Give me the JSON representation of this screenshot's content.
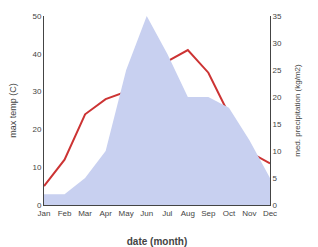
{
  "chart_data": {
    "type": "line",
    "categories": [
      "Jan",
      "Feb",
      "Mar",
      "Apr",
      "May",
      "Jun",
      "Jul",
      "Aug",
      "Sep",
      "Oct",
      "Nov",
      "Dec"
    ],
    "xlabel": "date (month)",
    "ylabel": "max temp (C)",
    "y2label": "med. precipitation (kg/m2)",
    "series": [
      {
        "type": "area",
        "axis": "y2",
        "color": "#c8d0f0",
        "values": [
          2,
          2,
          5,
          10,
          25,
          35,
          28,
          20,
          20,
          18,
          12,
          5
        ]
      },
      {
        "type": "line",
        "color": "#cc3333",
        "values": [
          5,
          12,
          24,
          28,
          30,
          40,
          38,
          41,
          35,
          24,
          14,
          11
        ]
      }
    ],
    "ylim": [
      0,
      50
    ],
    "yticks": [
      0,
      10,
      20,
      30,
      40,
      50
    ],
    "y2lim": [
      0,
      35
    ],
    "y2ticks": [
      0,
      5,
      10,
      15,
      20,
      25,
      30,
      35
    ],
    "grid": false
  }
}
